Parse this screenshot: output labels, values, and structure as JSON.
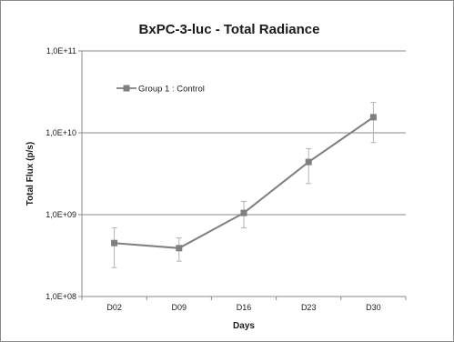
{
  "chart_data": {
    "type": "line",
    "title": "BxPC-3-luc - Total Radiance",
    "xlabel": "Days",
    "ylabel": "Total Flux (p/s)",
    "y_scale": "log",
    "ylim": [
      100000000,
      100000000000
    ],
    "y_ticks": [
      {
        "value": 100000000,
        "label": "1,0E+08"
      },
      {
        "value": 1000000000,
        "label": "1,0E+09"
      },
      {
        "value": 10000000000,
        "label": "1,0E+10"
      },
      {
        "value": 100000000000,
        "label": "1,0E+11"
      }
    ],
    "categories": [
      "D02",
      "D09",
      "D16",
      "D23",
      "D30"
    ],
    "grid": true,
    "legend_position": "top-left",
    "series": [
      {
        "name": "Group 1 : Control",
        "color": "#7f7f7f",
        "values": [
          450000000,
          390000000,
          1050000000,
          4400000000,
          15500000000
        ],
        "error_upper": [
          690000000,
          520000000,
          1450000000,
          6400000000,
          23500000000
        ],
        "error_lower": [
          225000000,
          270000000,
          690000000,
          2400000000,
          7600000000
        ]
      }
    ]
  }
}
